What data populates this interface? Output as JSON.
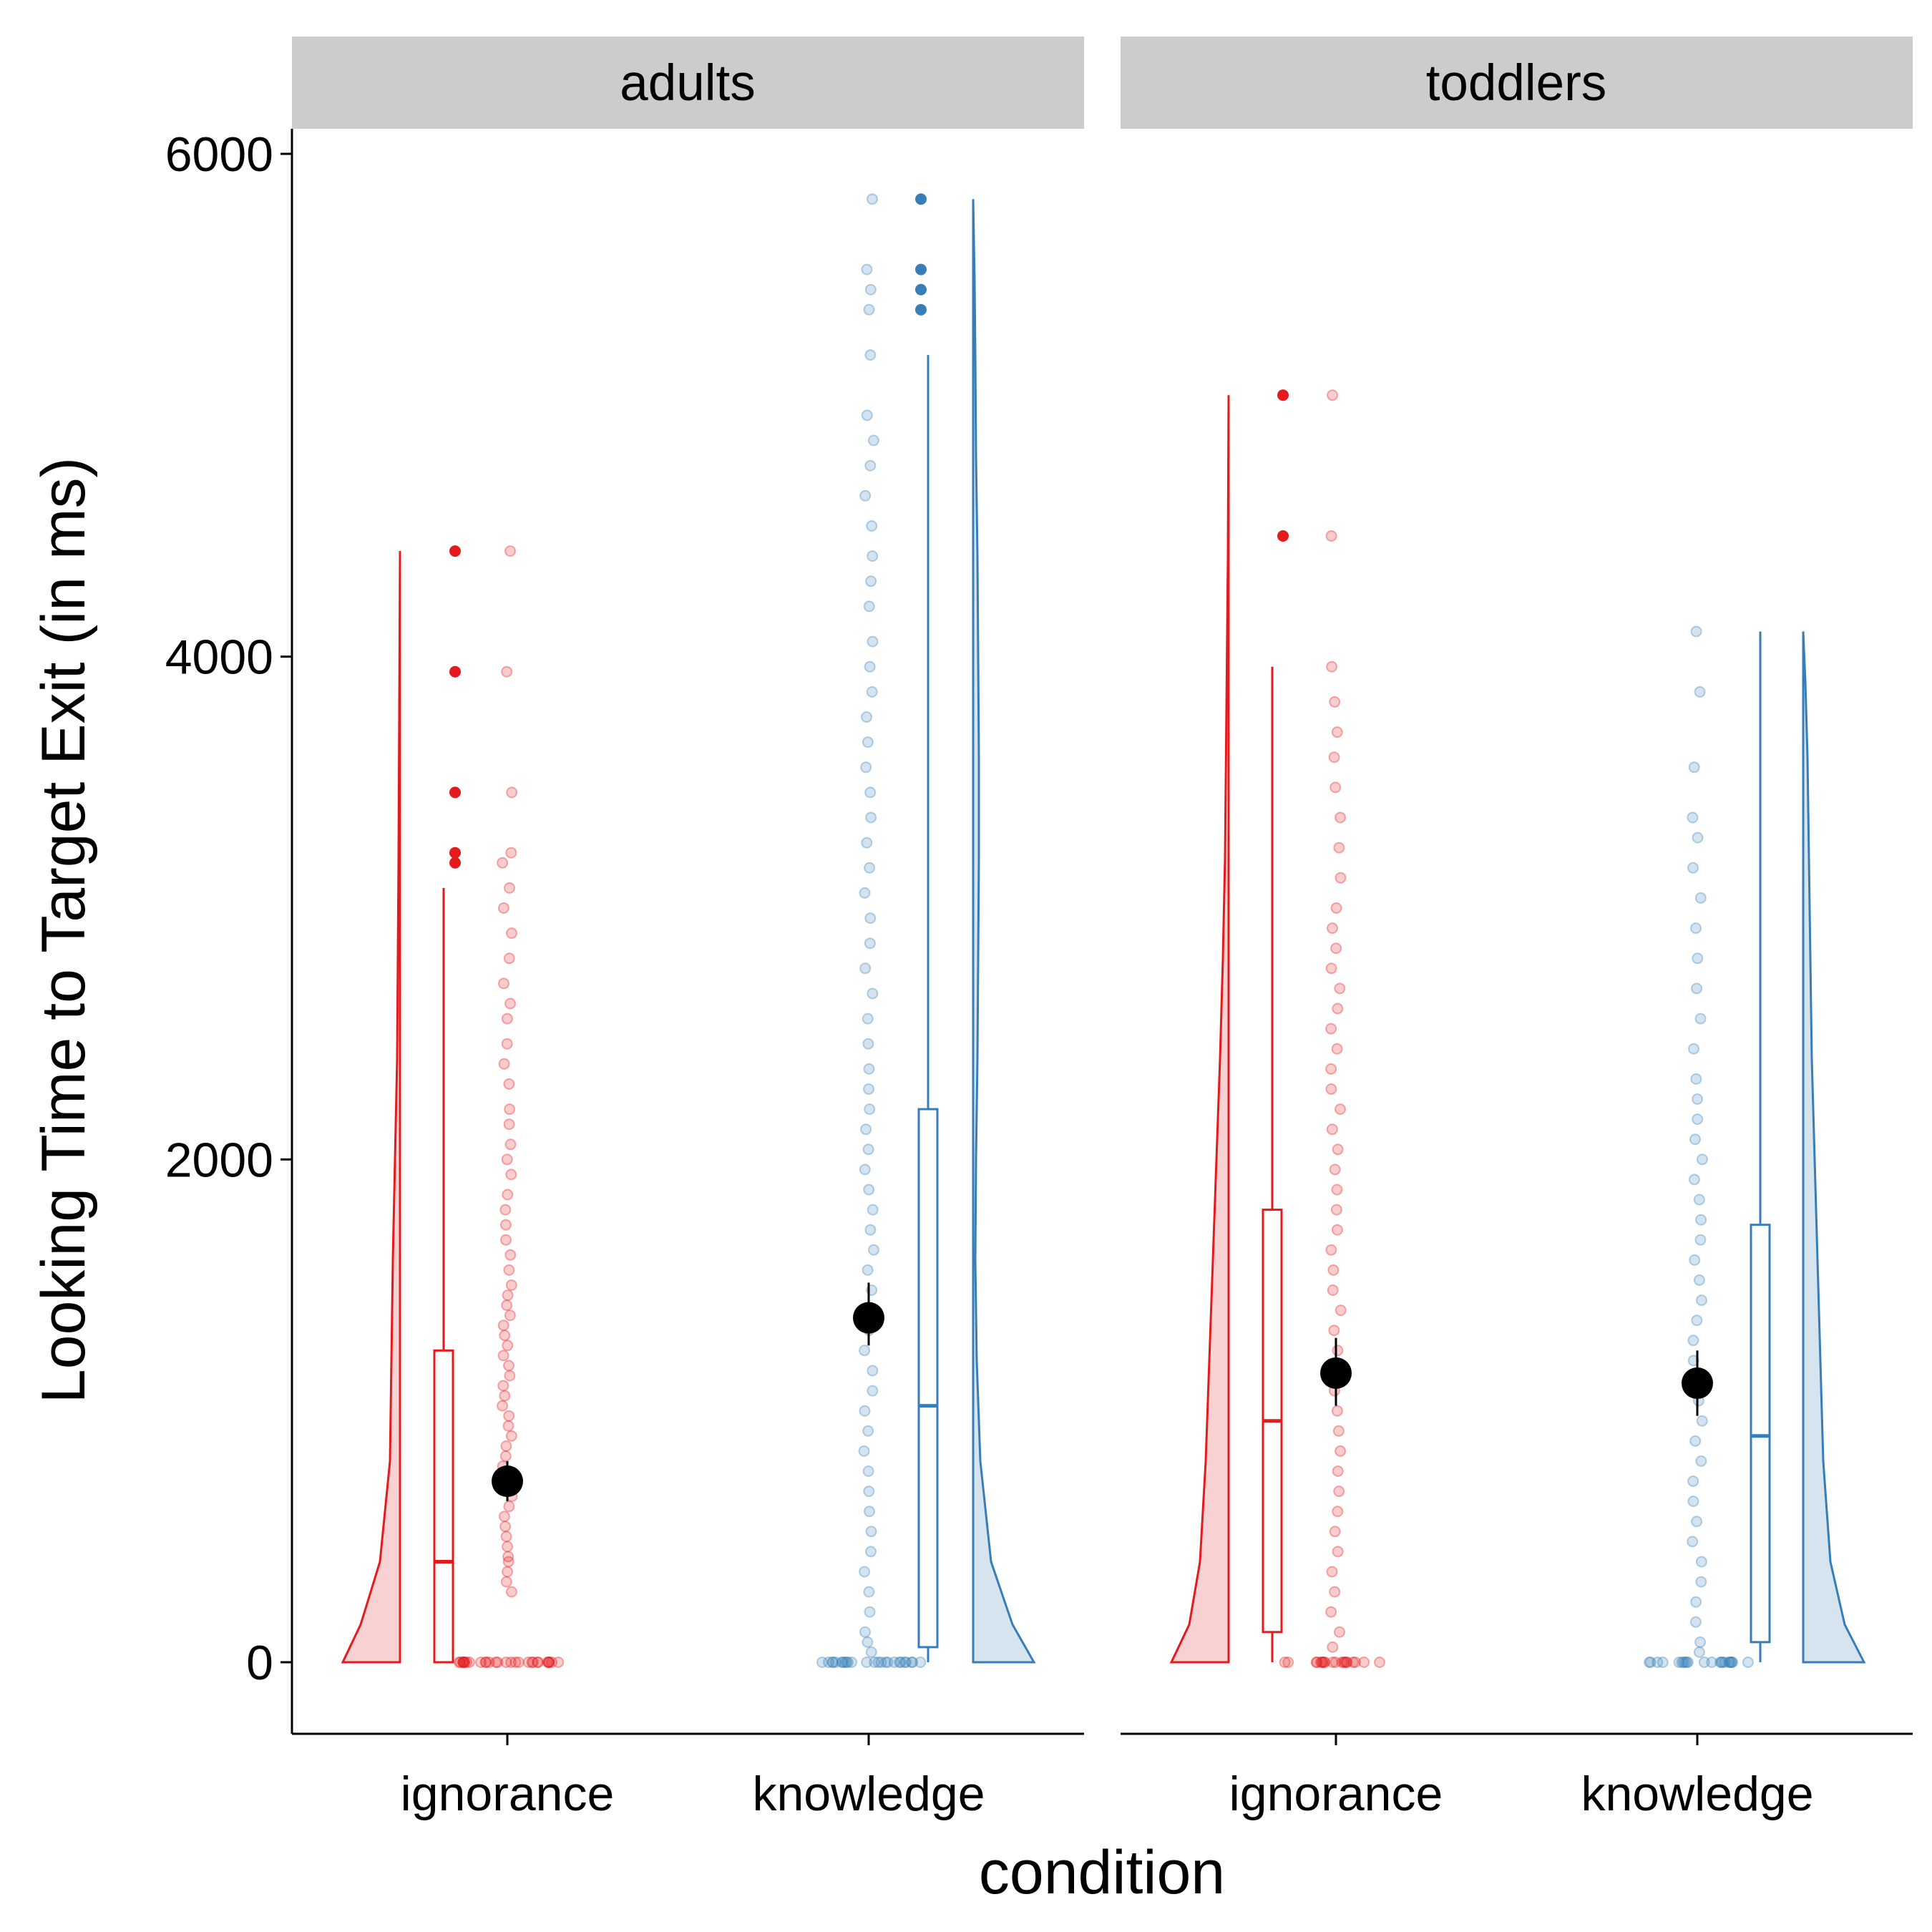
{
  "chart_data": {
    "type": "raincloud",
    "ylabel": "Looking Time to Target Exit (in ms)",
    "xlabel": "condition",
    "ylim": [
      -280,
      6100
    ],
    "yticks": [
      0,
      2000,
      4000,
      6000
    ],
    "categories": [
      "ignorance",
      "knowledge"
    ],
    "facets": [
      {
        "label": "adults",
        "groups": [
          {
            "category": "ignorance",
            "color": "#e41a1c",
            "fill": "#f8d1d2",
            "mean": 720,
            "ci": [
              640,
              800
            ],
            "box": {
              "q1": 0,
              "median": 400,
              "q3": 1240,
              "whisker_low": 0,
              "whisker_high": 3080
            },
            "outliers": [
              3180,
              3220,
              3460,
              3940,
              4420
            ],
            "max": 4420,
            "points": [
              0,
              0,
              0,
              0,
              0,
              0,
              0,
              0,
              0,
              0,
              0,
              0,
              0,
              0,
              0,
              0,
              0,
              0,
              0,
              0,
              0,
              0,
              0,
              0,
              0,
              0,
              0,
              0,
              0,
              0,
              280,
              320,
              360,
              400,
              420,
              460,
              500,
              540,
              580,
              620,
              660,
              700,
              740,
              780,
              820,
              860,
              900,
              940,
              980,
              1020,
              1060,
              1100,
              1140,
              1180,
              1220,
              1260,
              1300,
              1340,
              1380,
              1420,
              1460,
              1500,
              1560,
              1620,
              1680,
              1740,
              1800,
              1860,
              1940,
              2000,
              2060,
              2140,
              2200,
              2300,
              2380,
              2460,
              2560,
              2620,
              2700,
              2800,
              2900,
              3000,
              3080,
              3180,
              3220,
              3460,
              3940,
              4420
            ],
            "density": [
              [
                0,
                0.2
              ],
              [
                150,
                0.45
              ],
              [
                400,
                0.72
              ],
              [
                800,
                0.86
              ],
              [
                1200,
                0.88
              ],
              [
                1600,
                0.9
              ],
              [
                2000,
                0.93
              ],
              [
                2400,
                0.96
              ],
              [
                2800,
                0.97
              ],
              [
                3200,
                0.98
              ],
              [
                3800,
                0.99
              ],
              [
                4420,
                1.0
              ]
            ]
          },
          {
            "category": "knowledge",
            "color": "#377eb8",
            "fill": "#d6e4f0",
            "mean": 1370,
            "ci": [
              1260,
              1510
            ],
            "box": {
              "q1": 60,
              "median": 1020,
              "q3": 2200,
              "whisker_low": 0,
              "whisker_high": 5200
            },
            "outliers": [
              5380,
              5460,
              5540,
              5820
            ],
            "max": 5820,
            "points": [
              0,
              0,
              0,
              0,
              0,
              0,
              0,
              0,
              0,
              0,
              0,
              0,
              0,
              0,
              0,
              0,
              0,
              0,
              0,
              0,
              0,
              0,
              0,
              0,
              0,
              40,
              80,
              120,
              200,
              280,
              360,
              440,
              520,
              600,
              680,
              760,
              840,
              920,
              1000,
              1080,
              1160,
              1240,
              1320,
              1400,
              1480,
              1560,
              1640,
              1720,
              1800,
              1880,
              1960,
              2040,
              2120,
              2200,
              2280,
              2360,
              2460,
              2560,
              2660,
              2760,
              2860,
              2960,
              3060,
              3160,
              3260,
              3360,
              3460,
              3560,
              3660,
              3760,
              3860,
              3960,
              4060,
              4200,
              4300,
              4400,
              4520,
              4640,
              4760,
              4860,
              4960,
              5200,
              5380,
              5460,
              5540,
              5820
            ],
            "density": [
              [
                0,
                0.15
              ],
              [
                150,
                0.45
              ],
              [
                400,
                0.75
              ],
              [
                800,
                0.9
              ],
              [
                1200,
                0.95
              ],
              [
                1600,
                0.97
              ],
              [
                2000,
                0.96
              ],
              [
                2400,
                0.94
              ],
              [
                2800,
                0.93
              ],
              [
                3200,
                0.92
              ],
              [
                3600,
                0.92
              ],
              [
                4000,
                0.93
              ],
              [
                4400,
                0.94
              ],
              [
                4800,
                0.96
              ],
              [
                5200,
                0.97
              ],
              [
                5500,
                0.98
              ],
              [
                5820,
                1.0
              ]
            ]
          }
        ]
      },
      {
        "label": "toddlers",
        "groups": [
          {
            "category": "ignorance",
            "color": "#e41a1c",
            "fill": "#f8d1d2",
            "mean": 1150,
            "ci": [
              1020,
              1290
            ],
            "box": {
              "q1": 120,
              "median": 960,
              "q3": 1800,
              "whisker_low": 0,
              "whisker_high": 3960
            },
            "outliers": [
              4480,
              5040
            ],
            "max": 5040,
            "points": [
              0,
              0,
              0,
              0,
              0,
              0,
              0,
              0,
              0,
              0,
              0,
              0,
              0,
              0,
              0,
              0,
              0,
              0,
              0,
              0,
              60,
              120,
              200,
              280,
              360,
              440,
              520,
              600,
              680,
              760,
              840,
              920,
              1000,
              1080,
              1160,
              1240,
              1320,
              1400,
              1480,
              1560,
              1640,
              1720,
              1800,
              1880,
              1960,
              2040,
              2120,
              2200,
              2280,
              2360,
              2440,
              2520,
              2600,
              2680,
              2760,
              2840,
              2920,
              3000,
              3120,
              3240,
              3360,
              3480,
              3600,
              3700,
              3820,
              3960,
              4480,
              5040
            ],
            "density": [
              [
                0,
                0.2
              ],
              [
                150,
                0.45
              ],
              [
                400,
                0.6
              ],
              [
                800,
                0.68
              ],
              [
                1200,
                0.73
              ],
              [
                1600,
                0.78
              ],
              [
                2000,
                0.83
              ],
              [
                2400,
                0.88
              ],
              [
                2800,
                0.92
              ],
              [
                3200,
                0.95
              ],
              [
                3800,
                0.97
              ],
              [
                4400,
                0.99
              ],
              [
                5040,
                1.0
              ]
            ]
          },
          {
            "category": "knowledge",
            "color": "#377eb8",
            "fill": "#d6e4f0",
            "mean": 1110,
            "ci": [
              980,
              1240
            ],
            "box": {
              "q1": 80,
              "median": 900,
              "q3": 1740,
              "whisker_low": 0,
              "whisker_high": 4100
            },
            "outliers": [],
            "max": 4100,
            "points": [
              0,
              0,
              0,
              0,
              0,
              0,
              0,
              0,
              0,
              0,
              0,
              0,
              0,
              0,
              0,
              0,
              0,
              0,
              0,
              0,
              0,
              0,
              40,
              80,
              160,
              240,
              320,
              400,
              480,
              560,
              640,
              720,
              800,
              880,
              960,
              1040,
              1120,
              1200,
              1280,
              1360,
              1440,
              1520,
              1600,
              1680,
              1760,
              1840,
              1920,
              2000,
              2080,
              2160,
              2240,
              2320,
              2440,
              2560,
              2680,
              2800,
              2920,
              3040,
              3160,
              3280,
              3360,
              3560,
              3860,
              4100
            ],
            "density": [
              [
                0,
                0.15
              ],
              [
                150,
                0.42
              ],
              [
                400,
                0.62
              ],
              [
                800,
                0.72
              ],
              [
                1200,
                0.76
              ],
              [
                1600,
                0.8
              ],
              [
                2000,
                0.84
              ],
              [
                2400,
                0.88
              ],
              [
                2800,
                0.9
              ],
              [
                3200,
                0.92
              ],
              [
                3600,
                0.94
              ],
              [
                3900,
                0.97
              ],
              [
                4100,
                1.0
              ]
            ]
          }
        ]
      }
    ]
  }
}
